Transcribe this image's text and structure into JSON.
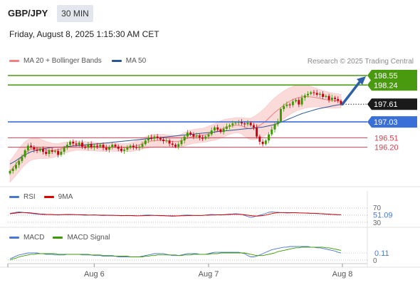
{
  "header": {
    "symbol": "GBP/JPY",
    "timeframe": "30 MIN",
    "datetime": "Friday, August 8, 2025 1:15:30 AM CET",
    "credit": "Research © 2025 Trading Central"
  },
  "legend": {
    "price": [
      {
        "label": "MA 20 + Bollinger Bands",
        "color": "#f08080"
      },
      {
        "label": "MA 50",
        "color": "#2b5797"
      }
    ],
    "rsi": [
      {
        "label": "RSI",
        "color": "#4a78d0"
      },
      {
        "label": "9MA",
        "color": "#dd0000"
      }
    ],
    "macd": [
      {
        "label": "MACD",
        "color": "#4a78d0"
      },
      {
        "label": "MACD Signal",
        "color": "#3a9a00"
      }
    ]
  },
  "colors": {
    "up_candle": "#3a9a00",
    "down_candle": "#c8000e",
    "resistance": "#4a9a10",
    "pivot": "#3a6fd8",
    "support": "#d04050",
    "bollinger_fill": "#fbdada",
    "ma50": "#2b5797",
    "arrow": "#2e60a8"
  },
  "chart_data": [
    {
      "type": "candlestick",
      "title": "",
      "x_ticks": [
        "Aug 6",
        "Aug 7",
        "Aug 8"
      ],
      "ylim": [
        195.8,
        198.9
      ],
      "levels": [
        {
          "label": "198.55",
          "value": 198.55,
          "kind": "resistance"
        },
        {
          "label": "198.24",
          "value": 198.24,
          "kind": "resistance"
        },
        {
          "label": "197.03",
          "value": 197.03,
          "kind": "pivot"
        },
        {
          "label": "196.51",
          "value": 196.51,
          "kind": "support"
        },
        {
          "label": "196.20",
          "value": 196.2,
          "kind": "support"
        }
      ],
      "last_price": {
        "label": "197.61",
        "value": 197.61
      },
      "closes": [
        195.42,
        195.5,
        195.62,
        195.75,
        195.88,
        196.1,
        196.25,
        196.2,
        196.12,
        196.08,
        196.15,
        196.05,
        195.98,
        196.1,
        196.05,
        196.08,
        195.95,
        196.05,
        196.18,
        196.28,
        196.38,
        196.32,
        196.28,
        196.35,
        196.22,
        196.18,
        196.3,
        196.2,
        196.25,
        196.22,
        196.28,
        196.18,
        196.12,
        196.2,
        196.28,
        196.22,
        196.15,
        196.08,
        196.12,
        196.18,
        196.25,
        196.2,
        196.18,
        196.22,
        196.3,
        196.42,
        196.52,
        196.48,
        196.55,
        196.5,
        196.45,
        196.4,
        196.42,
        196.32,
        196.28,
        196.22,
        196.3,
        196.42,
        196.55,
        196.68,
        196.62,
        196.55,
        196.58,
        196.52,
        196.48,
        196.55,
        196.62,
        196.75,
        196.85,
        196.78,
        196.7,
        196.8,
        196.88,
        196.92,
        196.98,
        197.0,
        197.02,
        196.98,
        196.95,
        197.0,
        196.92,
        196.85,
        196.55,
        196.38,
        196.3,
        196.42,
        196.62,
        196.78,
        196.95,
        197.05,
        197.45,
        197.55,
        197.6,
        197.58,
        197.7,
        197.75,
        197.6,
        197.82,
        197.9,
        197.95,
        198.0,
        197.98,
        197.92,
        197.95,
        197.85,
        197.88,
        197.75,
        197.82,
        197.78,
        197.72,
        197.61
      ],
      "ma50": [
        195.65,
        195.7,
        195.76,
        195.83,
        195.9,
        195.95,
        196.0,
        196.05,
        196.08,
        196.11,
        196.13,
        196.15,
        196.16,
        196.18,
        196.19,
        196.2,
        196.2,
        196.2,
        196.21,
        196.22,
        196.23,
        196.24,
        196.25,
        196.26,
        196.27,
        196.28,
        196.29,
        196.3,
        196.3,
        196.31,
        196.32,
        196.33,
        196.34,
        196.35,
        196.36,
        196.37,
        196.38,
        196.39,
        196.4,
        196.41,
        196.42,
        196.43,
        196.44,
        196.45,
        196.46,
        196.47,
        196.48,
        196.49,
        196.5,
        196.51,
        196.52,
        196.53,
        196.54,
        196.55,
        196.56,
        196.57,
        196.58,
        196.59,
        196.6,
        196.61,
        196.62,
        196.63,
        196.64,
        196.65,
        196.66,
        196.67,
        196.68,
        196.69,
        196.7,
        196.71,
        196.72,
        196.73,
        196.74,
        196.75,
        196.76,
        196.77,
        196.78,
        196.79,
        196.8,
        196.81,
        196.82,
        196.83,
        196.84,
        196.85,
        196.86,
        196.88,
        196.9,
        196.92,
        196.95,
        196.98,
        197.02,
        197.06,
        197.1,
        197.14,
        197.18,
        197.22,
        197.26,
        197.3,
        197.33,
        197.36,
        197.39,
        197.42,
        197.45,
        197.47,
        197.49,
        197.51,
        197.53,
        197.55,
        197.57,
        197.59,
        197.6
      ],
      "ma20": [
        195.4,
        195.52,
        195.65,
        195.78,
        195.9,
        196.0,
        196.08,
        196.13,
        196.15,
        196.16,
        196.15,
        196.13,
        196.11,
        196.1,
        196.09,
        196.1,
        196.12,
        196.15,
        196.18,
        196.2,
        196.22,
        196.24,
        196.25,
        196.25,
        196.25,
        196.24,
        196.23,
        196.22,
        196.22,
        196.21,
        196.21,
        196.2,
        196.2,
        196.2,
        196.2,
        196.2,
        196.2,
        196.19,
        196.19,
        196.19,
        196.2,
        196.22,
        196.25,
        196.28,
        196.32,
        196.35,
        196.38,
        196.4,
        196.42,
        196.42,
        196.42,
        196.42,
        196.41,
        196.4,
        196.39,
        196.38,
        196.39,
        196.42,
        196.46,
        196.5,
        196.53,
        196.55,
        196.57,
        196.58,
        196.59,
        196.61,
        196.64,
        196.67,
        196.7,
        196.74,
        196.78,
        196.82,
        196.85,
        196.88,
        196.9,
        196.92,
        196.92,
        196.9,
        196.86,
        196.82,
        196.8,
        196.82,
        196.86,
        196.92,
        196.98,
        197.05,
        197.15,
        197.25,
        197.34,
        197.42,
        197.5,
        197.58,
        197.65,
        197.71,
        197.76,
        197.8,
        197.83,
        197.85,
        197.86,
        197.86,
        197.85,
        197.84,
        197.82,
        197.8,
        197.78,
        197.76,
        197.74,
        197.73,
        197.72,
        197.72,
        197.71
      ],
      "bb_width": [
        0.35,
        0.36,
        0.37,
        0.38,
        0.38,
        0.38,
        0.37,
        0.36,
        0.35,
        0.34,
        0.32,
        0.3,
        0.28,
        0.26,
        0.24,
        0.22,
        0.2,
        0.19,
        0.18,
        0.17,
        0.16,
        0.16,
        0.15,
        0.15,
        0.15,
        0.15,
        0.14,
        0.14,
        0.14,
        0.14,
        0.14,
        0.14,
        0.13,
        0.13,
        0.13,
        0.13,
        0.13,
        0.13,
        0.13,
        0.13,
        0.14,
        0.15,
        0.16,
        0.17,
        0.18,
        0.19,
        0.2,
        0.2,
        0.2,
        0.2,
        0.2,
        0.2,
        0.2,
        0.2,
        0.2,
        0.2,
        0.2,
        0.21,
        0.22,
        0.23,
        0.23,
        0.23,
        0.23,
        0.23,
        0.23,
        0.24,
        0.25,
        0.26,
        0.27,
        0.28,
        0.28,
        0.28,
        0.27,
        0.26,
        0.25,
        0.25,
        0.25,
        0.27,
        0.3,
        0.33,
        0.35,
        0.38,
        0.4,
        0.42,
        0.44,
        0.46,
        0.47,
        0.48,
        0.48,
        0.48,
        0.47,
        0.46,
        0.45,
        0.44,
        0.43,
        0.42,
        0.41,
        0.4,
        0.38,
        0.36,
        0.34,
        0.32,
        0.3,
        0.29,
        0.28,
        0.27,
        0.26,
        0.25,
        0.24,
        0.23,
        0.22
      ]
    },
    {
      "type": "line",
      "title": "RSI",
      "ylim": [
        30,
        70
      ],
      "y_ticks": [
        "70",
        "30"
      ],
      "last_value": {
        "label": "51.09",
        "value": 51.09
      },
      "series": [
        {
          "name": "RSI",
          "values": [
            55.0,
            56.5,
            58.0,
            59.0,
            58.5,
            57.0,
            56.0,
            55.0,
            54.0,
            53.0,
            52.5,
            52.0,
            51.5,
            52.0,
            51.5,
            51.0,
            50.5,
            51.0,
            52.0,
            52.5,
            52.5,
            52.0,
            51.5,
            51.0,
            50.5,
            50.0,
            50.0,
            50.5,
            51.0,
            50.0,
            49.5,
            49.0,
            49.5,
            50.0,
            50.0,
            49.5,
            49.0,
            48.5,
            49.0,
            49.5,
            49.0,
            48.5,
            48.0,
            48.5,
            49.5,
            50.0,
            50.5,
            50.0,
            49.5,
            49.0,
            48.5,
            48.5,
            48.0,
            47.5,
            47.0,
            47.5,
            48.5,
            49.5,
            50.0,
            50.5,
            50.0,
            49.5,
            49.0,
            49.0,
            49.5,
            50.5,
            51.5,
            52.0,
            51.5,
            51.0,
            50.5,
            51.5,
            52.5,
            53.0,
            53.5,
            54.0,
            53.5,
            52.0,
            49.5,
            46.5,
            44.0,
            45.5,
            48.0,
            50.0,
            52.0,
            55.0,
            58.0,
            59.0,
            58.5,
            58.0,
            57.5,
            57.0,
            56.0,
            56.5,
            57.0,
            57.0,
            56.5,
            56.0,
            56.0,
            55.5,
            55.0,
            55.0,
            54.5,
            54.0,
            53.5,
            53.0,
            52.5,
            52.0,
            51.5,
            51.2,
            51.09
          ]
        },
        {
          "name": "9MA",
          "values": [
            54.0,
            55.0,
            56.0,
            57.0,
            57.5,
            57.5,
            57.0,
            56.5,
            55.5,
            54.5,
            53.5,
            53.0,
            52.5,
            52.0,
            52.0,
            51.5,
            51.5,
            51.5,
            51.5,
            51.5,
            51.5,
            51.5,
            51.5,
            51.5,
            51.0,
            51.0,
            50.5,
            50.5,
            50.5,
            50.5,
            50.0,
            50.0,
            50.0,
            49.5,
            49.5,
            49.5,
            49.5,
            49.0,
            49.0,
            49.0,
            49.0,
            49.0,
            48.5,
            48.5,
            48.5,
            49.0,
            49.0,
            49.5,
            49.5,
            49.5,
            49.0,
            49.0,
            48.5,
            48.5,
            48.0,
            48.0,
            48.0,
            48.5,
            48.5,
            49.0,
            49.0,
            49.5,
            49.5,
            49.5,
            49.5,
            50.0,
            50.0,
            50.5,
            50.5,
            51.0,
            51.0,
            51.0,
            51.5,
            52.0,
            52.5,
            52.5,
            52.5,
            52.0,
            51.0,
            50.0,
            49.0,
            48.0,
            47.5,
            48.0,
            49.0,
            50.5,
            52.5,
            54.5,
            56.0,
            57.0,
            57.5,
            57.5,
            57.5,
            57.0,
            57.0,
            57.0,
            56.5,
            56.5,
            56.0,
            56.0,
            55.5,
            55.5,
            55.0,
            54.5,
            54.0,
            53.5,
            53.0,
            52.5,
            52.0,
            51.5,
            51.5
          ]
        }
      ]
    },
    {
      "type": "line",
      "title": "MACD",
      "ylim": [
        -0.05,
        0.25
      ],
      "y_ticks": [
        "0"
      ],
      "last_value": {
        "label": "0.11",
        "value": 0.11
      },
      "series": [
        {
          "name": "MACD",
          "values": [
            0.02,
            0.04,
            0.06,
            0.08,
            0.09,
            0.1,
            0.11,
            0.11,
            0.11,
            0.11,
            0.1,
            0.1,
            0.09,
            0.09,
            0.09,
            0.08,
            0.08,
            0.08,
            0.08,
            0.09,
            0.09,
            0.09,
            0.09,
            0.09,
            0.08,
            0.08,
            0.08,
            0.08,
            0.07,
            0.07,
            0.07,
            0.06,
            0.06,
            0.06,
            0.06,
            0.06,
            0.05,
            0.05,
            0.05,
            0.05,
            0.05,
            0.05,
            0.05,
            0.05,
            0.06,
            0.07,
            0.08,
            0.09,
            0.1,
            0.1,
            0.1,
            0.1,
            0.09,
            0.08,
            0.07,
            0.07,
            0.07,
            0.08,
            0.09,
            0.1,
            0.1,
            0.1,
            0.1,
            0.09,
            0.09,
            0.09,
            0.1,
            0.11,
            0.12,
            0.12,
            0.12,
            0.12,
            0.12,
            0.12,
            0.12,
            0.12,
            0.12,
            0.11,
            0.1,
            0.07,
            0.05,
            0.05,
            0.06,
            0.08,
            0.1,
            0.12,
            0.14,
            0.16,
            0.17,
            0.18,
            0.19,
            0.2,
            0.2,
            0.21,
            0.21,
            0.21,
            0.21,
            0.21,
            0.21,
            0.21,
            0.2,
            0.2,
            0.19,
            0.19,
            0.18,
            0.17,
            0.16,
            0.15,
            0.14,
            0.12,
            0.11
          ]
        },
        {
          "name": "MACD Signal",
          "values": [
            0.0,
            0.02,
            0.03,
            0.05,
            0.06,
            0.07,
            0.08,
            0.09,
            0.09,
            0.1,
            0.1,
            0.1,
            0.1,
            0.1,
            0.1,
            0.1,
            0.09,
            0.09,
            0.09,
            0.09,
            0.09,
            0.09,
            0.09,
            0.09,
            0.09,
            0.09,
            0.09,
            0.08,
            0.08,
            0.08,
            0.08,
            0.07,
            0.07,
            0.07,
            0.07,
            0.06,
            0.06,
            0.06,
            0.06,
            0.06,
            0.05,
            0.05,
            0.05,
            0.05,
            0.05,
            0.06,
            0.06,
            0.07,
            0.07,
            0.08,
            0.08,
            0.08,
            0.08,
            0.08,
            0.08,
            0.08,
            0.07,
            0.07,
            0.08,
            0.08,
            0.08,
            0.09,
            0.09,
            0.09,
            0.09,
            0.09,
            0.09,
            0.1,
            0.1,
            0.1,
            0.11,
            0.11,
            0.11,
            0.11,
            0.11,
            0.11,
            0.11,
            0.11,
            0.11,
            0.1,
            0.09,
            0.08,
            0.07,
            0.07,
            0.07,
            0.08,
            0.09,
            0.1,
            0.11,
            0.13,
            0.14,
            0.15,
            0.16,
            0.17,
            0.18,
            0.19,
            0.19,
            0.2,
            0.2,
            0.2,
            0.2,
            0.2,
            0.2,
            0.2,
            0.2,
            0.19,
            0.19,
            0.18,
            0.17,
            0.16,
            0.15
          ]
        }
      ]
    }
  ]
}
